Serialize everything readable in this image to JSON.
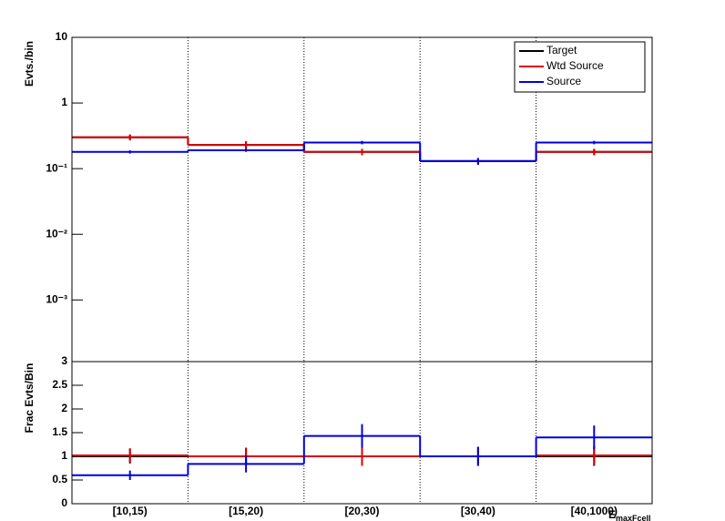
{
  "chart_data": [
    {
      "type": "step",
      "log_scale": true,
      "xgrid": true,
      "legend": "top-right",
      "ylabel": "Evts./bin",
      "ylim": [
        0.000115,
        10
      ],
      "yticks": [
        {
          "value": 0.001,
          "label": "10⁻³"
        },
        {
          "value": 0.01,
          "label": "10⁻²"
        },
        {
          "value": 0.1,
          "label": "10⁻¹"
        },
        1,
        10
      ],
      "series": [
        {
          "name": "Target",
          "color": "#000000",
          "values": [
            0.3,
            0.23,
            0.18,
            0.13,
            0.18
          ],
          "errors": [
            0.03,
            0.03,
            0.02,
            0.015,
            0.02
          ]
        },
        {
          "name": "Wtd Source",
          "color": "#dd0000",
          "values": [
            0.3,
            0.23,
            0.18,
            0.13,
            0.18
          ],
          "errors": [
            0.03,
            0.03,
            0.02,
            0.015,
            0.02
          ]
        },
        {
          "name": "Source",
          "color": "#0000dd",
          "values": [
            0.18,
            0.19,
            0.25,
            0.13,
            0.25
          ],
          "errors": [
            0.01,
            0.01,
            0.015,
            0.015,
            0.015
          ]
        }
      ]
    },
    {
      "type": "step",
      "log_scale": false,
      "xgrid": true,
      "ylabel": "Frac Evts/Bin",
      "xlabel": "E",
      "xlabel_sub": "maxFcell",
      "categories": [
        "[10,15)",
        "[15,20)",
        "[20,30)",
        "[30,40)",
        "[40,1000)"
      ],
      "ylim": [
        0,
        3
      ],
      "yticks": [
        0,
        0.5,
        1,
        1.5,
        2,
        2.5,
        3
      ],
      "series": [
        {
          "name": "Target",
          "color": "#000000",
          "values": [
            1,
            1,
            1,
            1,
            1
          ],
          "errors": [
            0.15,
            0.18,
            0.2,
            0.2,
            0.2
          ]
        },
        {
          "name": "Wtd Source",
          "color": "#dd0000",
          "values": [
            1.02,
            1.0,
            1.0,
            1.0,
            1.02
          ],
          "errors": [
            0.15,
            0.18,
            0.2,
            0.2,
            0.2
          ]
        },
        {
          "name": "Source",
          "color": "#0000dd",
          "values": [
            0.6,
            0.84,
            1.43,
            1.0,
            1.4
          ],
          "errors": [
            0.1,
            0.18,
            0.25,
            0.2,
            0.25
          ]
        }
      ]
    }
  ]
}
